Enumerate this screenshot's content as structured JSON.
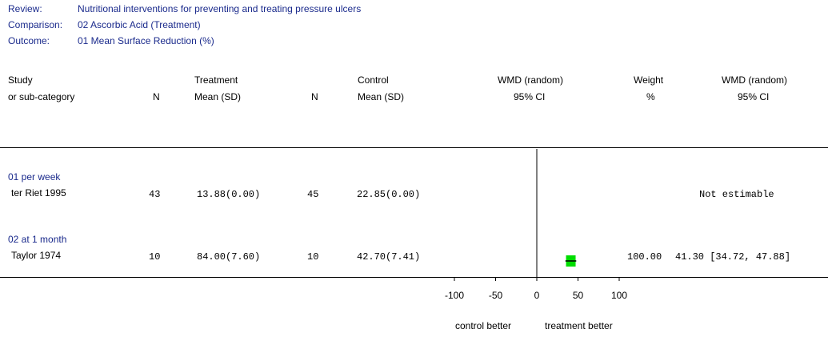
{
  "meta": {
    "review_label": "Review:",
    "review_value": "Nutritional interventions for preventing and treating pressure ulcers",
    "comparison_label": "Comparison:",
    "comparison_value": "02 Ascorbic Acid (Treatment)",
    "outcome_label": "Outcome:",
    "outcome_value": "01 Mean Surface Reduction (%)"
  },
  "columns": {
    "study_1": "Study",
    "study_2": "or sub-category",
    "n_treat": "N",
    "treatment_1": "Treatment",
    "treatment_2": "Mean (SD)",
    "n_ctrl": "N",
    "control_1": "Control",
    "control_2": "Mean (SD)",
    "wmd_plot_1": "WMD (random)",
    "wmd_plot_2": "95% CI",
    "weight_1": "Weight",
    "weight_2": "%",
    "wmd_text_1": "WMD (random)",
    "wmd_text_2": "95% CI"
  },
  "groups": [
    {
      "label": "01 per week",
      "studies": [
        {
          "name": "ter Riet 1995",
          "n_treat": "43",
          "treat_mean_sd": "13.88(0.00)",
          "n_ctrl": "45",
          "ctrl_mean_sd": "22.85(0.00)",
          "weight": "",
          "ci_text": "Not estimable"
        }
      ]
    },
    {
      "label": "02 at 1 month",
      "studies": [
        {
          "name": "Taylor 1974",
          "n_treat": "10",
          "treat_mean_sd": "84.00(7.60)",
          "n_ctrl": "10",
          "ctrl_mean_sd": "42.70(7.41)",
          "weight": "100.00",
          "ci_text": "41.30 [34.72, 47.88]"
        }
      ]
    }
  ],
  "axis": {
    "ticks": [
      "-100",
      "-50",
      "0",
      "50",
      "100"
    ],
    "left_label": "control better",
    "right_label": "treatment better"
  },
  "chart_data": {
    "type": "forest",
    "xlim": [
      -100,
      100
    ],
    "ticks": [
      -100,
      -50,
      0,
      50,
      100
    ],
    "null_line": 0,
    "marker_color": "#00dd00",
    "estimates": [
      {
        "study": "ter Riet 1995",
        "estimable": false
      },
      {
        "study": "Taylor 1974",
        "estimable": true,
        "estimate": 41.3,
        "ci_low": 34.72,
        "ci_high": 47.88,
        "weight": 100.0
      }
    ]
  }
}
